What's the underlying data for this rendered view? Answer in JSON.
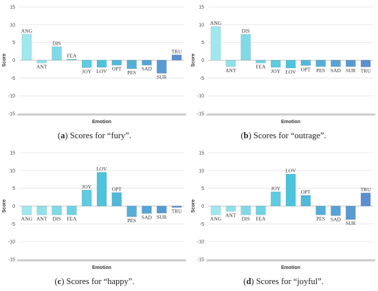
{
  "chart_data": [
    {
      "type": "bar",
      "panel_label": "a",
      "caption_text": "Scores for “fury”.",
      "xlabel": "Emotion",
      "ylabel": "Score",
      "ylim": [
        -15,
        15
      ],
      "yticks": [
        "15",
        "10",
        "5",
        "0",
        "-5",
        "-10",
        "-15"
      ],
      "categories": [
        "ANG",
        "ANT",
        "DIS",
        "FEA",
        "JOY",
        "LOV",
        "OPT",
        "PES",
        "SAD",
        "SUR",
        "TRU"
      ],
      "values": [
        7.3,
        -0.8,
        3.8,
        0.3,
        -2.1,
        -2.0,
        -1.4,
        -2.4,
        -1.4,
        -3.7,
        1.5
      ]
    },
    {
      "type": "bar",
      "panel_label": "b",
      "caption_text": "Scores for “outrage”.",
      "xlabel": "Emotion",
      "ylabel": "Score",
      "ylim": [
        -15,
        15
      ],
      "yticks": [
        "15",
        "10",
        "5",
        "0",
        "-5",
        "-10",
        "-15"
      ],
      "categories": [
        "ANG",
        "ANT",
        "DIS",
        "FEA",
        "JOY",
        "LOV",
        "OPT",
        "PES",
        "SAD",
        "SUR",
        "TRU"
      ],
      "values": [
        9.5,
        -1.8,
        7.3,
        -0.8,
        -2.0,
        -2.2,
        -1.5,
        -1.8,
        -1.8,
        -1.8,
        -1.9
      ]
    },
    {
      "type": "bar",
      "panel_label": "c",
      "caption_text": "Scores for “happy”.",
      "xlabel": "Emotion",
      "ylabel": "Score",
      "ylim": [
        -15,
        15
      ],
      "yticks": [
        "15",
        "10",
        "5",
        "0",
        "-5",
        "-10",
        "-15"
      ],
      "categories": [
        "ANG",
        "ANT",
        "DIS",
        "FEA",
        "JOY",
        "LOV",
        "OPT",
        "PES",
        "SAD",
        "SUR",
        "TRU"
      ],
      "values": [
        -2.5,
        -2.5,
        -2.5,
        -2.5,
        4.5,
        9.5,
        3.8,
        -3.0,
        -2.1,
        -2.0,
        -0.4
      ]
    },
    {
      "type": "bar",
      "panel_label": "d",
      "caption_text": "Scores for “joyful”.",
      "xlabel": "Emotion",
      "ylabel": "Score",
      "ylim": [
        -15,
        15
      ],
      "yticks": [
        "15",
        "10",
        "5",
        "0",
        "-5",
        "-10",
        "-15"
      ],
      "categories": [
        "ANG",
        "ANT",
        "DIS",
        "FEA",
        "JOY",
        "LOV",
        "OPT",
        "PES",
        "SAD",
        "SUR",
        "TRU"
      ],
      "values": [
        -2.5,
        -1.5,
        -2.5,
        -2.5,
        4.0,
        9.0,
        3.0,
        -2.5,
        -2.7,
        -3.8,
        3.7
      ]
    }
  ],
  "colors": {
    "bar_start": "#9fe8ee",
    "bar_mid": "#4ec4dc",
    "bar_end": "#5a8fd0",
    "grid": "#e4e4e4",
    "floor": "#cfcfcf"
  }
}
